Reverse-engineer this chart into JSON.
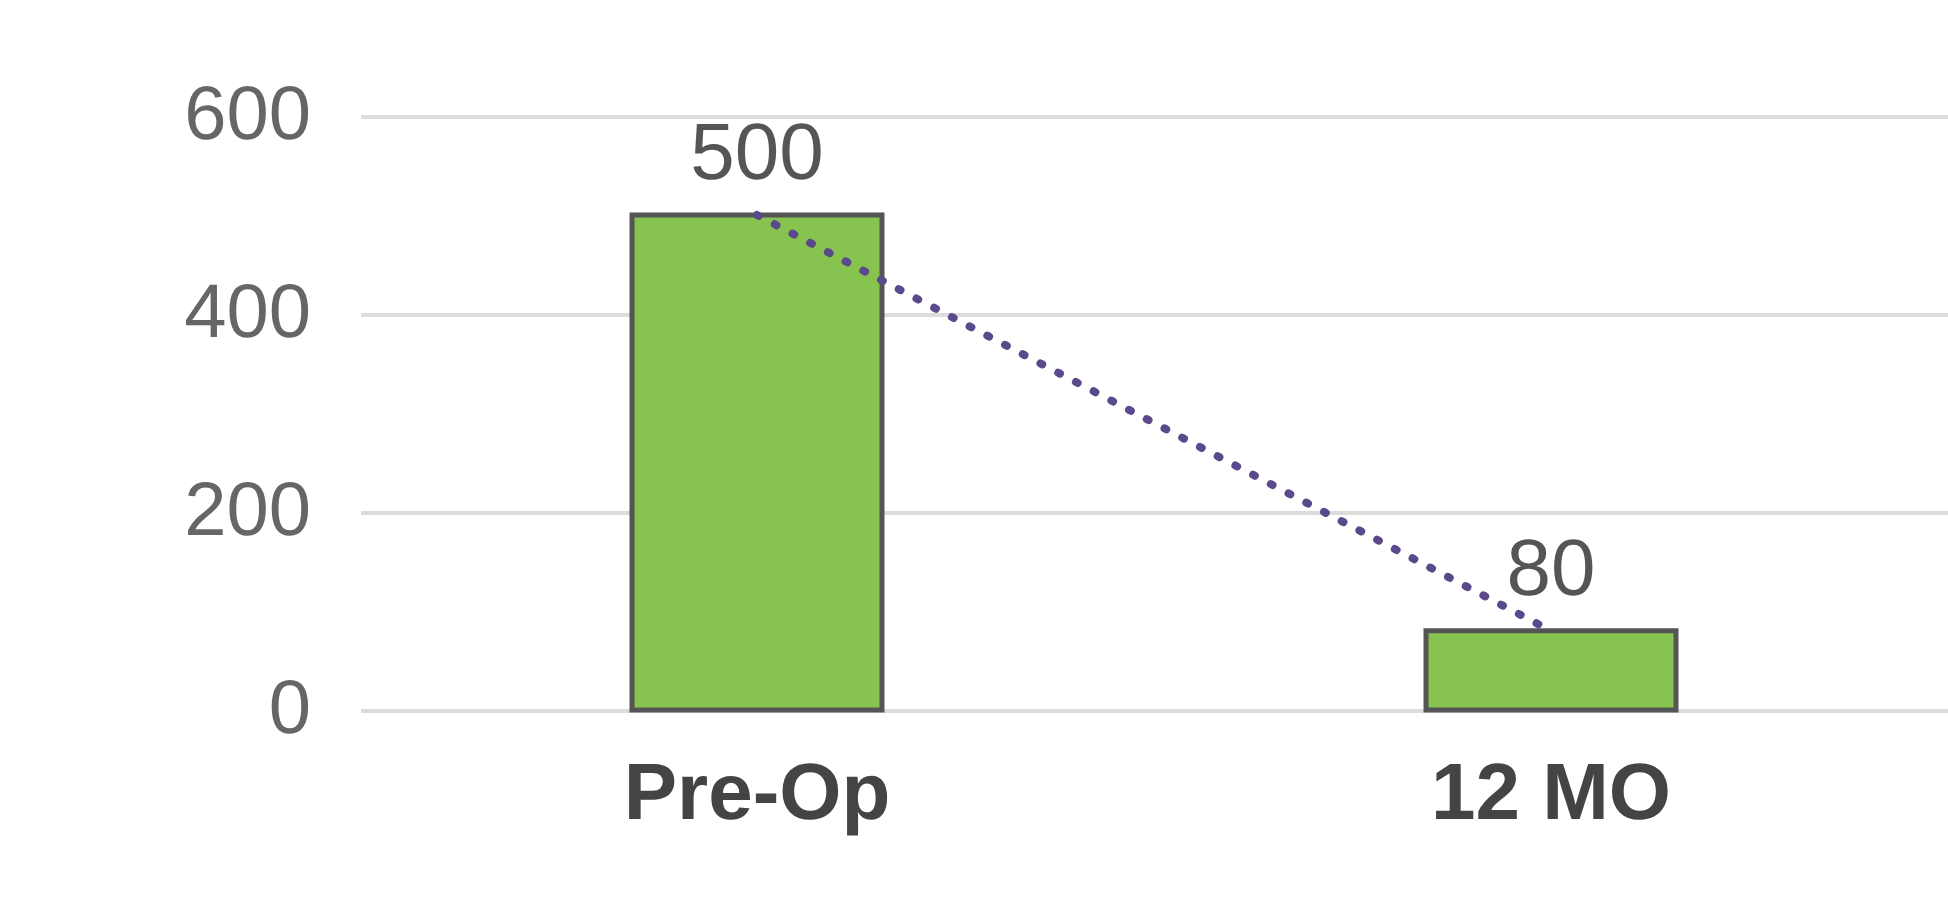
{
  "chart_data": {
    "type": "bar",
    "categories": [
      "Pre-Op",
      "12 MO"
    ],
    "series": [
      {
        "color": "#86c34f",
        "values": [
          500,
          80
        ],
        "value_labels": [
          "500",
          "80"
        ]
      },
      {
        "type": "line",
        "color": "#5a4a8c",
        "values": [
          500,
          80
        ],
        "line_style": "dotted"
      }
    ],
    "ylim": [
      0,
      600
    ],
    "yticks": [
      0,
      200,
      400,
      600
    ],
    "grid": "y"
  }
}
